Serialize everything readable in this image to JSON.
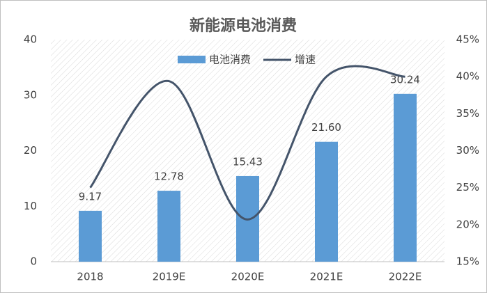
{
  "chart_data": {
    "type": "bar",
    "title": "新能源电池消费",
    "categories": [
      "2018",
      "2019E",
      "2020E",
      "2021E",
      "2022E"
    ],
    "series": [
      {
        "name": "电池消费",
        "color": "#5b9bd5",
        "values": [
          9.17,
          12.78,
          15.43,
          21.6,
          30.24
        ],
        "value_labels": [
          "9.17",
          "12.78",
          "15.43",
          "21.60",
          "30.24"
        ]
      },
      {
        "name": "增速",
        "color": "#44546a",
        "type": "line",
        "axis": "y2",
        "values": [
          25,
          39.4,
          20.7,
          40,
          40
        ]
      }
    ],
    "ylim": [
      0,
      40
    ],
    "yticks": [
      0,
      10,
      20,
      30,
      40
    ],
    "y2lim": [
      15,
      45
    ],
    "y2ticks": [
      {
        "value": 15,
        "label": "15%"
      },
      {
        "value": 20,
        "label": "20%"
      },
      {
        "value": 25,
        "label": "25%"
      },
      {
        "value": 30,
        "label": "30%"
      },
      {
        "value": 35,
        "label": "35%"
      },
      {
        "value": 40,
        "label": "40%"
      },
      {
        "value": 45,
        "label": "45%"
      }
    ],
    "grid": false,
    "legend": "top"
  }
}
